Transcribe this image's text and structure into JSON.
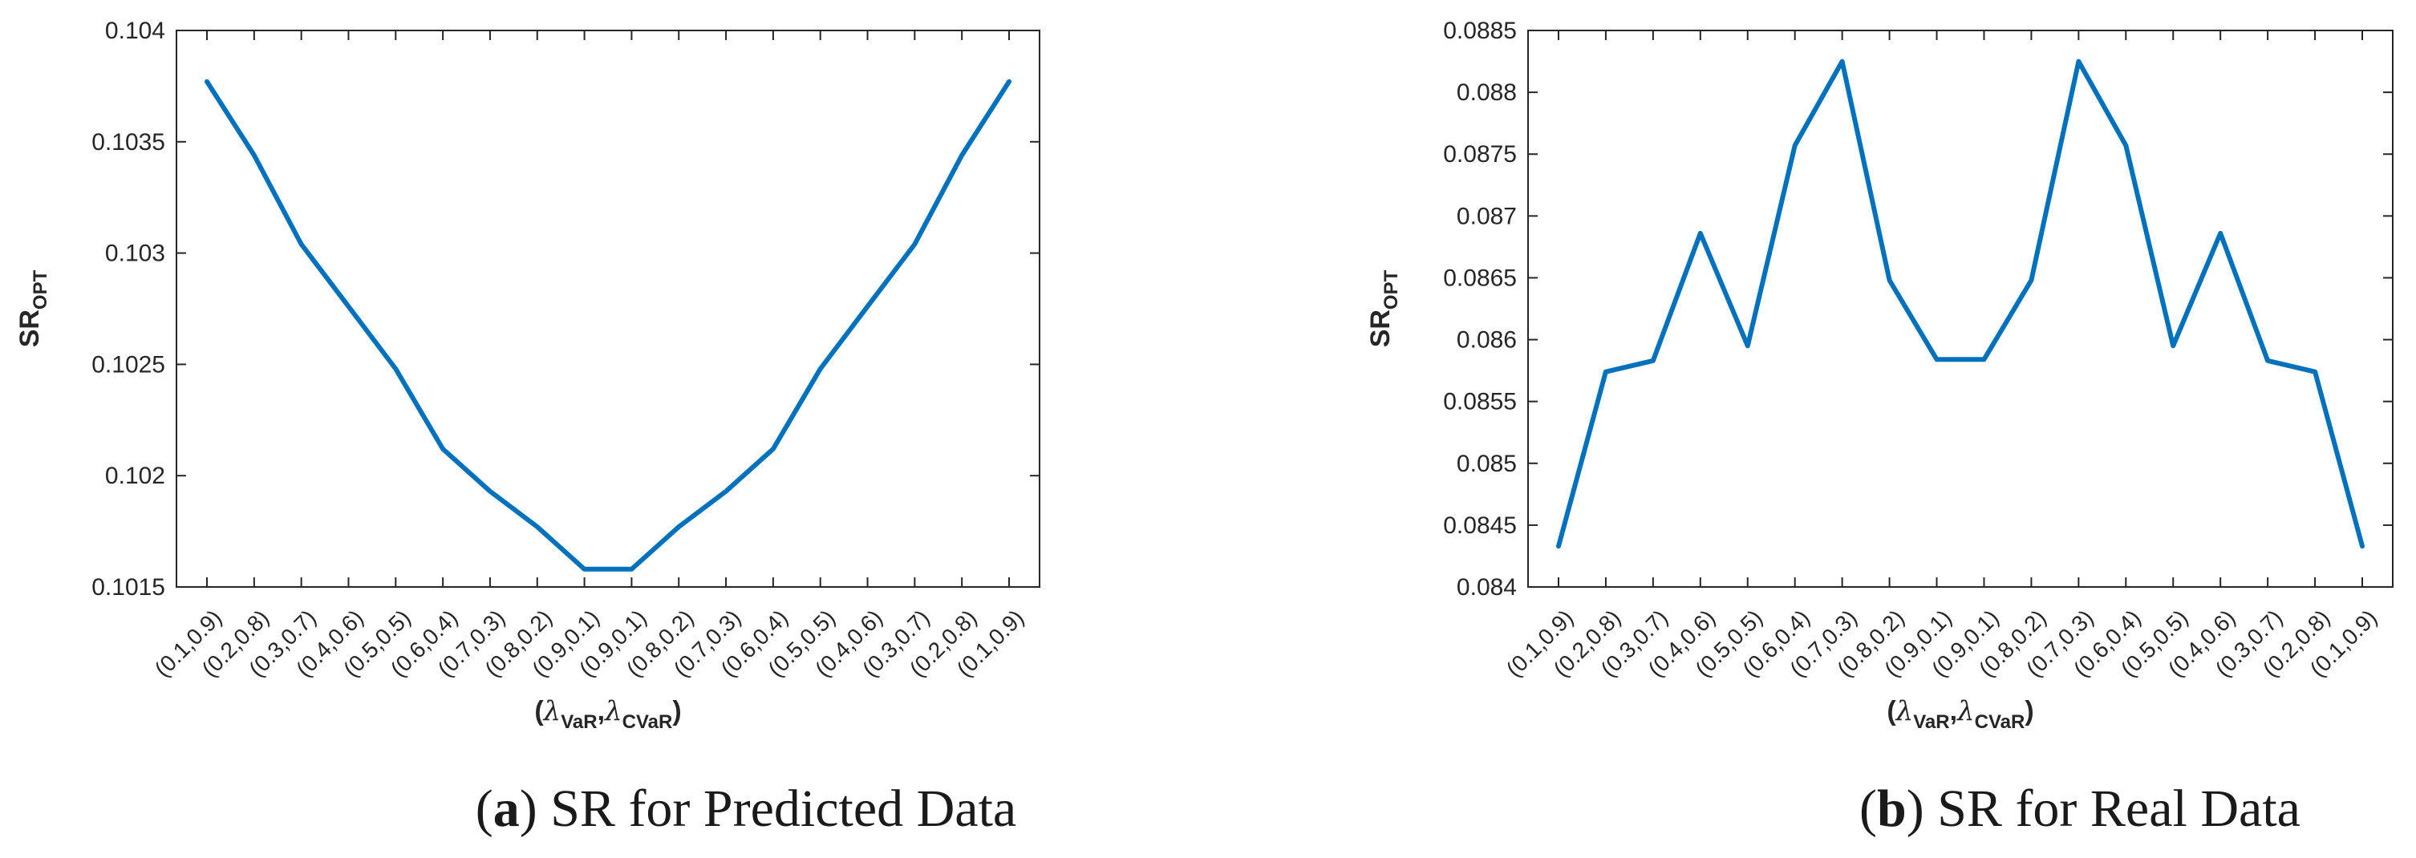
{
  "colors": {
    "series": "#0072BD",
    "axis": "#262626"
  },
  "x_label": {
    "lambda": "λ",
    "var_sub": "VaR",
    "sep": ",",
    "cvar_sub": "CVaR"
  },
  "y_label": {
    "main": "SR",
    "sub": "OPT"
  },
  "chart_data": [
    {
      "type": "line",
      "caption": {
        "tag": "a",
        "text": "SR for Predicted Data"
      },
      "categories": [
        "(0.1,0.9)",
        "(0.2,0.8)",
        "(0.3,0.7)",
        "(0.4,0.6)",
        "(0.5,0.5)",
        "(0.6,0.4)",
        "(0.7,0.3)",
        "(0.8,0.2)",
        "(0.9,0.1)",
        "(0.9,0.1)",
        "(0.8,0.2)",
        "(0.7,0.3)",
        "(0.6,0.4)",
        "(0.5,0.5)",
        "(0.4,0.6)",
        "(0.3,0.7)",
        "(0.2,0.8)",
        "(0.1,0.9)"
      ],
      "values": [
        0.10377,
        0.10344,
        0.10304,
        0.10276,
        0.10248,
        0.10212,
        0.10193,
        0.10177,
        0.10158,
        0.10158,
        0.10177,
        0.10193,
        0.10212,
        0.10248,
        0.10276,
        0.10304,
        0.10344,
        0.10377
      ],
      "ylim": [
        0.1015,
        0.104
      ],
      "yticks": [
        0.1015,
        0.102,
        0.1025,
        0.103,
        0.1035,
        0.104
      ],
      "ytick_labels": [
        "0.1015",
        "0.102",
        "0.1025",
        "0.103",
        "0.1035",
        "0.104"
      ],
      "grid": false
    },
    {
      "type": "line",
      "caption": {
        "tag": "b",
        "text": "SR for Real Data"
      },
      "categories": [
        "(0.1,0.9)",
        "(0.2,0.8)",
        "(0.3,0.7)",
        "(0.4,0.6)",
        "(0.5,0.5)",
        "(0.6,0.4)",
        "(0.7,0.3)",
        "(0.8,0.2)",
        "(0.9,0.1)",
        "(0.9,0.1)",
        "(0.8,0.2)",
        "(0.7,0.3)",
        "(0.6,0.4)",
        "(0.5,0.5)",
        "(0.4,0.6)",
        "(0.3,0.7)",
        "(0.2,0.8)",
        "(0.1,0.9)"
      ],
      "values": [
        0.08433,
        0.08574,
        0.08583,
        0.08686,
        0.08595,
        0.08757,
        0.08825,
        0.08648,
        0.08584,
        0.08584,
        0.08648,
        0.08825,
        0.08757,
        0.08595,
        0.08686,
        0.08583,
        0.08574,
        0.08433
      ],
      "ylim": [
        0.084,
        0.0885
      ],
      "yticks": [
        0.084,
        0.0845,
        0.085,
        0.0855,
        0.086,
        0.0865,
        0.087,
        0.0875,
        0.088,
        0.0885
      ],
      "ytick_labels": [
        "0.084",
        "0.0845",
        "0.085",
        "0.0855",
        "0.086",
        "0.0865",
        "0.087",
        "0.0875",
        "0.088",
        "0.0885"
      ],
      "grid": false
    }
  ]
}
